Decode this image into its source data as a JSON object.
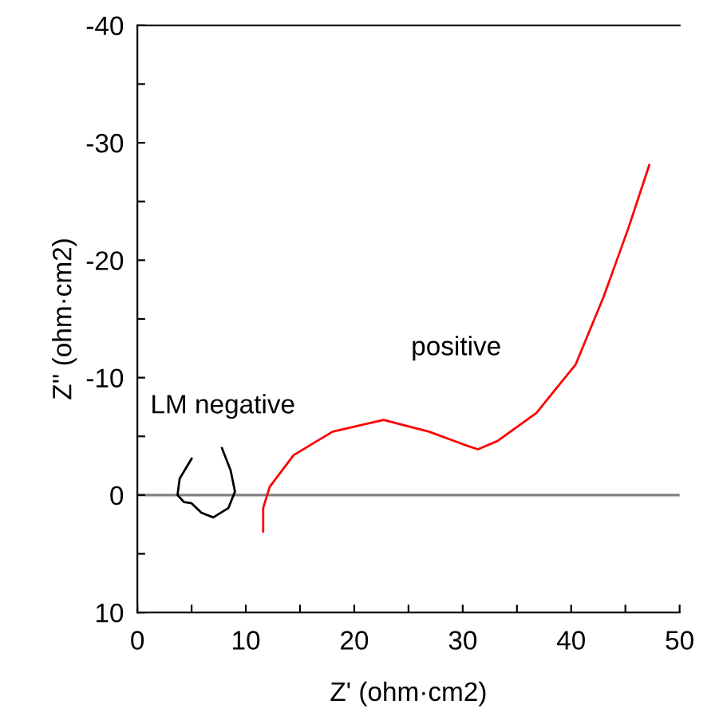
{
  "chart_data": {
    "type": "line",
    "xlabel": "Z' (ohm·cm2)",
    "ylabel": "Z'' (ohm·cm2)",
    "xlim": [
      0,
      50
    ],
    "ylim": [
      10,
      -40
    ],
    "xticks": [
      0,
      {
        "value": 5,
        "label": null
      },
      10,
      {
        "value": 15,
        "label": null
      },
      20,
      {
        "value": 25,
        "label": null
      },
      30,
      {
        "value": 35,
        "label": null
      },
      40,
      {
        "value": 45,
        "label": null
      },
      50
    ],
    "yticks": [
      -40,
      {
        "value": -35,
        "label": null
      },
      -30,
      {
        "value": -25,
        "label": null
      },
      -20,
      {
        "value": -15,
        "label": null
      },
      -10,
      {
        "value": -5,
        "label": null
      },
      0,
      {
        "value": 5,
        "label": null
      },
      10
    ],
    "grid": false,
    "legend": false,
    "ref_lines": [
      {
        "axis": "y",
        "value": 0,
        "color": "#808080"
      }
    ],
    "series": [
      {
        "name": "LM negative",
        "color": "#000000",
        "x": [
          5.0,
          3.9,
          3.7,
          4.3,
          5.0,
          5.9,
          7.0,
          8.4,
          9.0,
          8.6,
          7.8
        ],
        "values": [
          -3.1,
          -1.4,
          0,
          0.6,
          0.7,
          1.5,
          1.9,
          1.1,
          -0.3,
          -2.1,
          -4.0
        ]
      },
      {
        "name": "positive",
        "color": "#ff0000",
        "x": [
          11.6,
          11.6,
          12.2,
          14.4,
          18.0,
          22.7,
          26.9,
          30.1,
          31.4,
          33.2,
          36.8,
          40.4,
          43.0,
          45.3,
          47.2
        ],
        "values": [
          3.1,
          1.1,
          -0.7,
          -3.4,
          -5.4,
          -6.4,
          -5.4,
          -4.3,
          -3.9,
          -4.6,
          -7.0,
          -11.1,
          -16.9,
          -22.8,
          -28.1
        ]
      }
    ]
  }
}
